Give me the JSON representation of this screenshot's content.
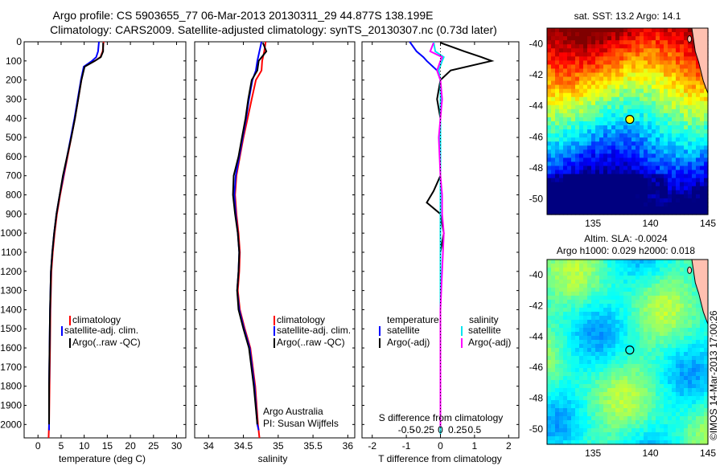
{
  "title": {
    "line1": "Argo profile: CS 5903655_77 06-Mar-2013 20130311_29 44.877S 138.199E",
    "line2": "Climatology: CARS2009. Satellite-adjusted climatology: synTS_20130307.nc (0.73d later)"
  },
  "colors": {
    "climatology": "#ff0000",
    "satellite": "#0000ff",
    "argo": "#000000",
    "salinity_satellite": "#00e5ee",
    "salinity_argo": "#ff00ff"
  },
  "depth_ticks": [
    "0",
    "100",
    "200",
    "300",
    "400",
    "500",
    "600",
    "700",
    "800",
    "900",
    "1000",
    "1100",
    "1200",
    "1300",
    "1400",
    "1500",
    "1600",
    "1700",
    "1800",
    "1900",
    "2000"
  ],
  "panels": {
    "temperature": {
      "xlabel": "temperature (deg C)",
      "xticks": [
        "0",
        "5",
        "10",
        "15",
        "20",
        "25",
        "30"
      ],
      "legend": [
        "climatology",
        "satellite-adj. clim.",
        "Argo(..raw -QC)"
      ]
    },
    "salinity": {
      "xlabel": "salinity",
      "xticks": [
        "34",
        "34.5",
        "35",
        "35.5",
        "36"
      ],
      "legend": [
        "climatology",
        "satellite-adj. clim.",
        "Argo(..raw -QC)"
      ],
      "credit1": "Argo Australia",
      "credit2": "PI: Susan Wijffels"
    },
    "difference": {
      "xlabel": "T difference from climatology",
      "toplabel": "S difference from climatology",
      "t_ticks": [
        "-2",
        "-1",
        "0",
        "1",
        "2"
      ],
      "s_ticks": [
        "-0.5",
        "-0.25",
        "0",
        "0.25",
        "0.5"
      ],
      "leg_t_title": "temperature",
      "leg_s_title": "salinity",
      "leg_t": [
        "satellite",
        "Argo(-adj)"
      ],
      "leg_s": [
        "satellite",
        "Argo(-adj)"
      ]
    }
  },
  "maps": {
    "sst": {
      "title": "sat. SST: 13.2  Argo: 14.1",
      "yticks": [
        "-40",
        "-42",
        "-44",
        "-46",
        "-48",
        "-50"
      ],
      "xticks": [
        "135",
        "140",
        "145"
      ]
    },
    "sla": {
      "title1": "Altim. SLA: -0.0024",
      "title2": "Argo h1000: 0.029 h2000: 0.018",
      "yticks": [
        "-40",
        "-42",
        "-44",
        "-46",
        "-48",
        "-50"
      ],
      "xticks": [
        "135",
        "140",
        "145"
      ]
    }
  },
  "footer_stamp": "©IMOS 14-Mar-2013 17:00:26",
  "chart_data": [
    {
      "type": "line",
      "title": "",
      "xlabel": "temperature (deg C)",
      "ylabel": "",
      "xlim": [
        -3,
        32
      ],
      "ylim": [
        2070,
        0
      ],
      "series": [
        {
          "name": "climatology",
          "color": "#ff0000",
          "x": [
            14.2,
            14.0,
            13.5,
            12.3,
            10.0,
            9.4,
            8.7,
            8.0,
            7.2,
            6.4,
            5.6,
            4.8,
            4.1,
            3.6,
            3.2,
            2.9,
            2.7,
            2.6,
            2.5,
            2.4,
            2.3
          ],
          "y": [
            0,
            50,
            80,
            100,
            130,
            200,
            300,
            400,
            500,
            600,
            700,
            800,
            900,
            1000,
            1100,
            1200,
            1400,
            1600,
            1800,
            2000,
            2070
          ]
        },
        {
          "name": "satellite-adj. clim.",
          "color": "#0000ff",
          "x": [
            13.2,
            13.0,
            12.6,
            11.7,
            9.9,
            9.3,
            8.6,
            7.9,
            7.1,
            6.3,
            5.5,
            4.7,
            4.0,
            3.5,
            3.1,
            2.8,
            2.6,
            2.5,
            2.4,
            2.4,
            2.4
          ],
          "y": [
            0,
            50,
            80,
            100,
            130,
            200,
            300,
            400,
            500,
            600,
            700,
            800,
            900,
            1000,
            1100,
            1200,
            1400,
            1600,
            1800,
            2000,
            2030
          ]
        },
        {
          "name": "Argo(..raw -QC)",
          "color": "#000000",
          "x": [
            14.1,
            14.1,
            13.6,
            12.3,
            10.1,
            9.4,
            8.7,
            8.0,
            7.2,
            6.3,
            5.4,
            4.7,
            4.0,
            3.5,
            3.1,
            2.8,
            2.6,
            2.5,
            2.4,
            2.4
          ],
          "y": [
            5,
            50,
            80,
            100,
            130,
            200,
            300,
            400,
            500,
            600,
            700,
            800,
            900,
            1000,
            1100,
            1200,
            1400,
            1600,
            1800,
            2000
          ]
        }
      ]
    },
    {
      "type": "line",
      "title": "",
      "xlabel": "salinity",
      "ylabel": "",
      "xlim": [
        33.8,
        36.1
      ],
      "ylim": [
        2070,
        0
      ],
      "series": [
        {
          "name": "climatology",
          "color": "#ff0000",
          "x": [
            34.82,
            34.8,
            34.77,
            34.76,
            34.68,
            34.62,
            34.56,
            34.5,
            34.45,
            34.4,
            34.38,
            34.4,
            34.43,
            34.45,
            34.44,
            34.42,
            34.45,
            34.52,
            34.6,
            34.67,
            34.71,
            34.73
          ],
          "y": [
            0,
            50,
            100,
            150,
            200,
            300,
            400,
            500,
            600,
            700,
            800,
            900,
            1000,
            1100,
            1200,
            1300,
            1400,
            1500,
            1600,
            1800,
            2000,
            2070
          ]
        },
        {
          "name": "satellite-adj. clim.",
          "color": "#0000ff",
          "x": [
            34.76,
            34.73,
            34.7,
            34.68,
            34.63,
            34.58,
            34.54,
            34.49,
            34.44,
            34.39,
            34.37,
            34.39,
            34.42,
            34.44,
            34.43,
            34.41,
            34.44,
            34.51,
            34.59,
            34.66,
            34.7,
            34.72
          ],
          "y": [
            0,
            50,
            100,
            150,
            200,
            300,
            400,
            500,
            600,
            700,
            800,
            900,
            1000,
            1100,
            1200,
            1300,
            1400,
            1500,
            1600,
            1800,
            2000,
            2030
          ]
        },
        {
          "name": "Argo(..raw -QC)",
          "color": "#000000",
          "x": [
            34.78,
            34.83,
            34.72,
            34.7,
            34.62,
            34.57,
            34.53,
            34.48,
            34.43,
            34.36,
            34.35,
            34.38,
            34.42,
            34.44,
            34.43,
            34.41,
            34.43,
            34.5,
            34.58,
            34.65,
            34.7
          ],
          "y": [
            5,
            50,
            100,
            150,
            200,
            300,
            400,
            500,
            600,
            700,
            800,
            900,
            1000,
            1100,
            1200,
            1300,
            1400,
            1500,
            1600,
            1800,
            2000
          ]
        }
      ]
    },
    {
      "type": "line",
      "title": "",
      "xlabel": "T difference from climatology",
      "ylabel": "",
      "xlim": [
        -2.3,
        2.3
      ],
      "ylim": [
        2070,
        0
      ],
      "series": [
        {
          "name": "temperature satellite",
          "color": "#0000ff",
          "x": [
            -0.9,
            -0.7,
            -0.5,
            -0.4,
            -0.1,
            0.0,
            0.0,
            0.0,
            0.0,
            0.0,
            0.0,
            0.0,
            0.0,
            0.0,
            0.0,
            0.0,
            0.0,
            0.0,
            0.0
          ],
          "y": [
            0,
            50,
            80,
            100,
            150,
            200,
            300,
            400,
            500,
            700,
            900,
            1100,
            1300,
            1500,
            1700,
            1900,
            2000,
            2030,
            2050
          ]
        },
        {
          "name": "temperature Argo(-adj)",
          "color": "#000000",
          "x": [
            0.0,
            0.7,
            1.2,
            1.5,
            0.3,
            0.0,
            -0.1,
            0.0,
            0.0,
            -0.2,
            -0.4,
            0.0,
            0.1,
            0.0,
            0.0,
            0.0,
            0.0,
            0.0,
            0.0,
            0.0
          ],
          "y": [
            5,
            50,
            80,
            100,
            150,
            200,
            300,
            400,
            700,
            780,
            840,
            900,
            1000,
            1100,
            1300,
            1500,
            1700,
            1900,
            2000,
            2010
          ]
        },
        {
          "name": "salinity satellite",
          "color": "#00e5ee",
          "x": [
            -0.2,
            -0.15,
            0.1,
            0.05,
            -0.05,
            0.0,
            0.0,
            0.0,
            0.0,
            0.0,
            0.0,
            0.0,
            0.0,
            0.0,
            0.0,
            0.0,
            0.0,
            0.0
          ],
          "y": [
            0,
            50,
            80,
            100,
            150,
            200,
            300,
            400,
            600,
            800,
            1000,
            1200,
            1400,
            1600,
            1800,
            1900,
            2000,
            2050
          ]
        },
        {
          "name": "salinity Argo(-adj)",
          "color": "#ff00ff",
          "x": [
            -0.2,
            -0.3,
            0.05,
            0.0,
            -0.1,
            0.0,
            0.05,
            0.0,
            -0.05,
            0.0,
            0.05,
            0.05,
            0.1,
            0.05,
            0.0,
            0.0,
            0.0,
            0.0,
            0.0,
            0.0
          ],
          "y": [
            5,
            50,
            80,
            100,
            150,
            200,
            300,
            400,
            500,
            700,
            800,
            900,
            1000,
            1200,
            1400,
            1500,
            1700,
            1900,
            2000,
            2010
          ]
        }
      ]
    },
    {
      "type": "heatmap",
      "title": "sat. SST: 13.2  Argo: 14.1",
      "xlim": [
        131,
        145
      ],
      "ylim": [
        -51,
        -39
      ],
      "marker": {
        "lon": 138.199,
        "lat": -44.877
      }
    },
    {
      "type": "heatmap",
      "title": "Altim. SLA: -0.0024",
      "xlim": [
        131,
        145
      ],
      "ylim": [
        -51,
        -39
      ],
      "marker": {
        "lon": 138.199,
        "lat": -44.877
      }
    }
  ]
}
